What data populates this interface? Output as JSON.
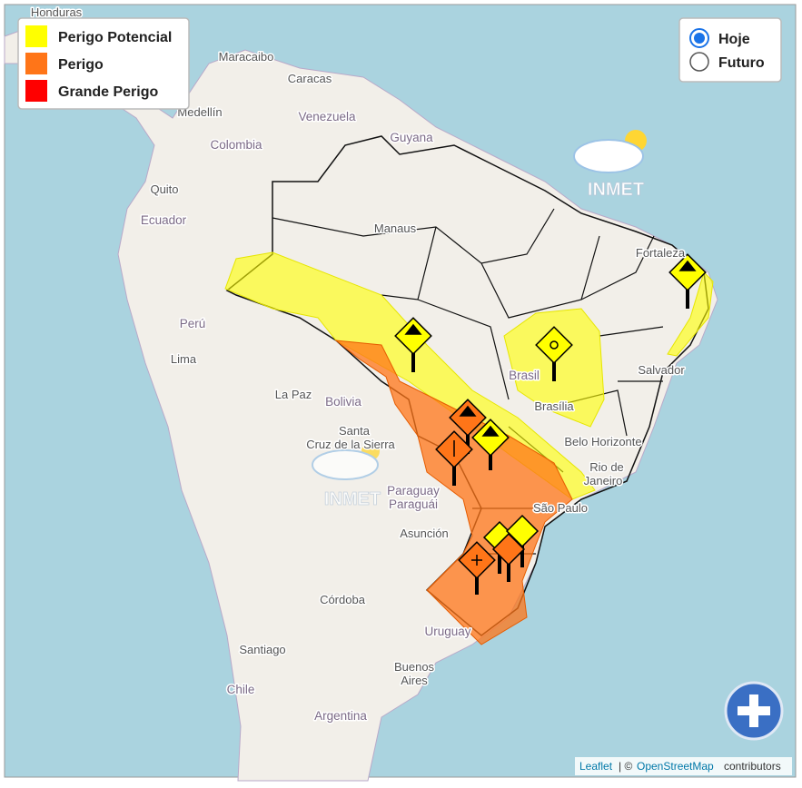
{
  "legend": [
    {
      "label": "Perigo Potencial",
      "color": "#ffff00"
    },
    {
      "label": "Perigo",
      "color": "#ff7518"
    },
    {
      "label": "Grande Perigo",
      "color": "#ff0000"
    }
  ],
  "controls": {
    "options": [
      {
        "label": "Hoje",
        "checked": true
      },
      {
        "label": "Futuro",
        "checked": false
      }
    ]
  },
  "logos": [
    "INMET",
    "INMET"
  ],
  "labels": [
    "Honduras",
    "Maracaibo",
    "Caracas",
    "Medellín",
    "Venezuela",
    "Guyana",
    "Colombia",
    "Quito",
    "Ecuador",
    "Manaus",
    "Fortaleza",
    "Perú",
    "Lima",
    "Salvador",
    "Brasil",
    "Brasília",
    "La Paz",
    "Bolivia",
    "Santa",
    "Cruz de la Sierra",
    "Belo Horizonte",
    "Rio de",
    "Janeiro",
    "Paraguay",
    "Paraguái",
    "São Paulo",
    "Asunción",
    "Córdoba",
    "Uruguay",
    "Santiago",
    "Buenos",
    "Aires",
    "Chile",
    "Argentina"
  ],
  "attribution": {
    "link": "Leaflet",
    "separator": "| ©",
    "osm": "OpenStreetMap",
    "suffix": "contributors"
  }
}
